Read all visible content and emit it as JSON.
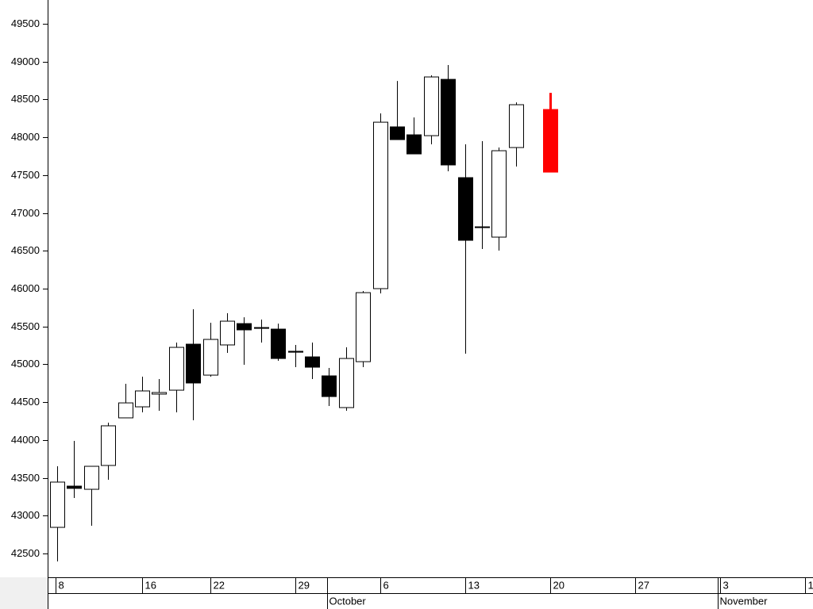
{
  "chart_data": {
    "type": "candlestick",
    "x": [
      0,
      1,
      2,
      3,
      4,
      5,
      6,
      7,
      8,
      9,
      10,
      11,
      12,
      13,
      14,
      15,
      16,
      17,
      18,
      19,
      20,
      21,
      22,
      23,
      24,
      25,
      26,
      27,
      29
    ],
    "open": [
      42845,
      43390,
      43348,
      43663,
      44292,
      44438,
      44606,
      44658,
      45266,
      44857,
      45256,
      45538,
      45486,
      45465,
      45172,
      45098,
      44847,
      44428,
      45035,
      46000,
      48138,
      48033,
      48022,
      48766,
      47467,
      46817,
      46681,
      47865,
      48368
    ],
    "high": [
      43652,
      43988,
      43652,
      44229,
      44742,
      44836,
      44805,
      45287,
      45727,
      45549,
      45675,
      45622,
      45591,
      45538,
      45256,
      45287,
      44952,
      45224,
      45968,
      48316,
      48745,
      48263,
      48819,
      48955,
      47907,
      47949,
      47865,
      48462,
      48588
    ],
    "low": [
      42395,
      43233,
      42866,
      43474,
      44292,
      44365,
      44386,
      44365,
      44260,
      44836,
      45151,
      44994,
      45287,
      45046,
      44962,
      44805,
      44449,
      44386,
      44962,
      45937,
      47970,
      47781,
      47907,
      47551,
      45140,
      46524,
      46503,
      47614,
      47540
    ],
    "close": [
      43443,
      43360,
      43652,
      44187,
      44490,
      44648,
      44627,
      45224,
      44753,
      45329,
      45570,
      45455,
      45475,
      45077,
      45160,
      44962,
      44574,
      45077,
      45947,
      48200,
      47970,
      47781,
      48798,
      47635,
      46639,
      46810,
      47823,
      48431,
      47540
    ],
    "up_color": "#ffffff",
    "down_color": "#000000",
    "last_color": "#ff0000",
    "xlim": [
      -0.56,
      44.3
    ],
    "xticks": [
      {
        "value": -0.1,
        "label": "8"
      },
      {
        "value": 5,
        "label": "16"
      },
      {
        "value": 9,
        "label": "22"
      },
      {
        "value": 14,
        "label": "29"
      },
      {
        "value": 19,
        "label": "6"
      },
      {
        "value": 24,
        "label": "13"
      },
      {
        "value": 29,
        "label": "20"
      },
      {
        "value": 34,
        "label": "27"
      },
      {
        "value": 39,
        "label": "3"
      },
      {
        "value": 44,
        "label": "1"
      }
    ],
    "month_ticks": [
      {
        "value": 15.9,
        "label": "October"
      },
      {
        "value": 38.9,
        "label": "November"
      }
    ],
    "ylim": [
      42185,
      49815
    ],
    "yticks": [
      42500,
      43000,
      43500,
      44000,
      44500,
      45000,
      45500,
      46000,
      46500,
      47000,
      47500,
      48000,
      48500,
      49000,
      49500
    ]
  }
}
